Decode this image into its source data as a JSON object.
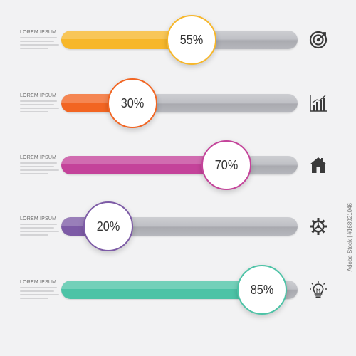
{
  "rows": [
    {
      "label": "LOREM IPSUM",
      "value_text": "55%",
      "fraction": 0.55,
      "color": "#f7b72a",
      "icon": "target-icon"
    },
    {
      "label": "LOREM IPSUM",
      "value_text": "30%",
      "fraction": 0.3,
      "color": "#f26522",
      "icon": "bar-chart-icon"
    },
    {
      "label": "LOREM IPSUM",
      "value_text": "70%",
      "fraction": 0.7,
      "color": "#c4439a",
      "icon": "house-icon"
    },
    {
      "label": "LOREM IPSUM",
      "value_text": "20%",
      "fraction": 0.2,
      "color": "#7d5ba6",
      "icon": "gear-icon"
    },
    {
      "label": "LOREM IPSUM",
      "value_text": "85%",
      "fraction": 0.85,
      "color": "#4cc3a6",
      "icon": "lightbulb-icon"
    }
  ],
  "watermark": "Adobe Stock | #168921046"
}
